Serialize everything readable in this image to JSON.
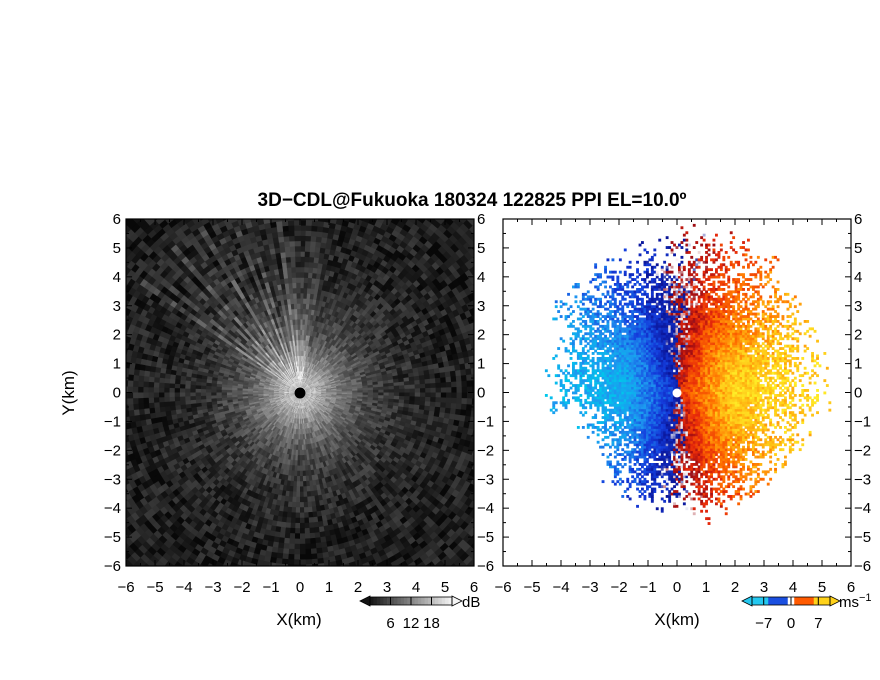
{
  "title": "3D−CDL@Fukuoka 180324 122825 PPI EL=10.0º",
  "colors": {
    "dopplerNeg": "#1a4fe0",
    "dopplerNegLight": "#24c8f0",
    "dopplerPos": "#ff5a00",
    "dopplerPosLight": "#ffd21a",
    "dopplerZero": "#ffffff",
    "snrLow": "#0d0d0d",
    "snrHigh": "#f0f0f0",
    "frame": "#000000"
  },
  "chart_data": [
    {
      "type": "heatmap",
      "name": "snr-ppi",
      "xlabel": "X(km)",
      "ylabel": "Y(km)",
      "xlim": [
        -6,
        6
      ],
      "ylim": [
        -6,
        6
      ],
      "xticks": [
        -6,
        -5,
        -4,
        -3,
        -2,
        -1,
        0,
        1,
        2,
        3,
        4,
        5,
        6
      ],
      "yticks": [
        -6,
        -5,
        -4,
        -3,
        -2,
        -1,
        0,
        1,
        2,
        3,
        4,
        5,
        6
      ],
      "colorbar": {
        "label": "dB",
        "ticks": [
          6,
          12,
          18
        ],
        "range": [
          0,
          24
        ],
        "palette": "grayscale"
      },
      "radar_site": [
        0,
        0
      ],
      "max_range_km": 8.5,
      "description_of_field": "echo strongest near the radar and decaying with range; bright radial spokes in the north-west sector between azimuth 300 and 360 degrees"
    },
    {
      "type": "heatmap",
      "name": "doppler-ppi",
      "xlabel": "X(km)",
      "xlim": [
        -6,
        6
      ],
      "ylim": [
        -6,
        6
      ],
      "xticks": [
        -6,
        -5,
        -4,
        -3,
        -2,
        -1,
        0,
        1,
        2,
        3,
        4,
        5,
        6
      ],
      "yticks": [
        -6,
        -5,
        -4,
        -3,
        -2,
        -1,
        0,
        1,
        2,
        3,
        4,
        5,
        6
      ],
      "colorbar": {
        "label": "ms⁻¹",
        "ticks": [
          -7,
          0,
          7
        ],
        "range": [
          -10,
          10
        ],
        "palette": "blue-white-orange"
      },
      "radar_site": [
        0,
        0
      ],
      "max_range_km": 5.7,
      "description_of_field": "negative (blue) velocities west of the radar, positive (orange/yellow) velocities east of the radar"
    }
  ],
  "labels": {
    "snr_xlabel": "X(km)",
    "snr_ylabel": "Y(km)",
    "doppler_xlabel": "X(km)",
    "snr_cb_unit": "dB",
    "doppler_cb_unit": "ms",
    "doppler_cb_unit_exp": "−1"
  }
}
